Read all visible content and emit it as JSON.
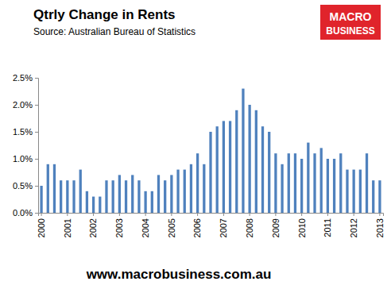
{
  "chart_data": {
    "type": "bar",
    "title": "Qtrly Change in Rents",
    "subtitle": "Source: Australian Bureau of Statistics",
    "annotations": [
      "MACRO",
      "BUSINESS",
      "www.macrobusiness.com.au"
    ],
    "categories": [
      "2000",
      null,
      null,
      null,
      "2001",
      null,
      null,
      null,
      "2002",
      null,
      null,
      null,
      "2003",
      null,
      null,
      null,
      "2004",
      null,
      null,
      null,
      "2005",
      null,
      null,
      null,
      "2006",
      null,
      null,
      null,
      "2007",
      null,
      null,
      null,
      "2008",
      null,
      null,
      null,
      "2009",
      null,
      null,
      null,
      "2010",
      null,
      null,
      null,
      "2011",
      null,
      null,
      null,
      "2012",
      null,
      null,
      null,
      "2013"
    ],
    "values": [
      0.5,
      0.9,
      0.9,
      0.6,
      0.6,
      0.6,
      0.8,
      0.4,
      0.3,
      0.3,
      0.6,
      0.6,
      0.7,
      0.6,
      0.7,
      0.6,
      0.4,
      0.4,
      0.7,
      0.6,
      0.7,
      0.8,
      0.8,
      0.9,
      1.1,
      0.9,
      1.5,
      1.6,
      1.7,
      1.7,
      1.9,
      2.3,
      2.0,
      1.9,
      1.6,
      1.5,
      1.1,
      0.9,
      1.1,
      1.1,
      1.0,
      1.3,
      1.1,
      1.2,
      1.0,
      1.0,
      1.1,
      0.8,
      0.8,
      0.8,
      1.1,
      0.6,
      0.6
    ],
    "color": "#4f81bd",
    "ylim": [
      0,
      2.5
    ],
    "yticks": [
      {
        "value": 0,
        "label": "0.0%"
      },
      {
        "value": 0.5,
        "label": "0.5%"
      },
      {
        "value": 1,
        "label": "1.0%"
      },
      {
        "value": 1.5,
        "label": "1.5%"
      },
      {
        "value": 2,
        "label": "2.0%"
      },
      {
        "value": 2.5,
        "label": "2.5%"
      }
    ],
    "grid": false
  }
}
